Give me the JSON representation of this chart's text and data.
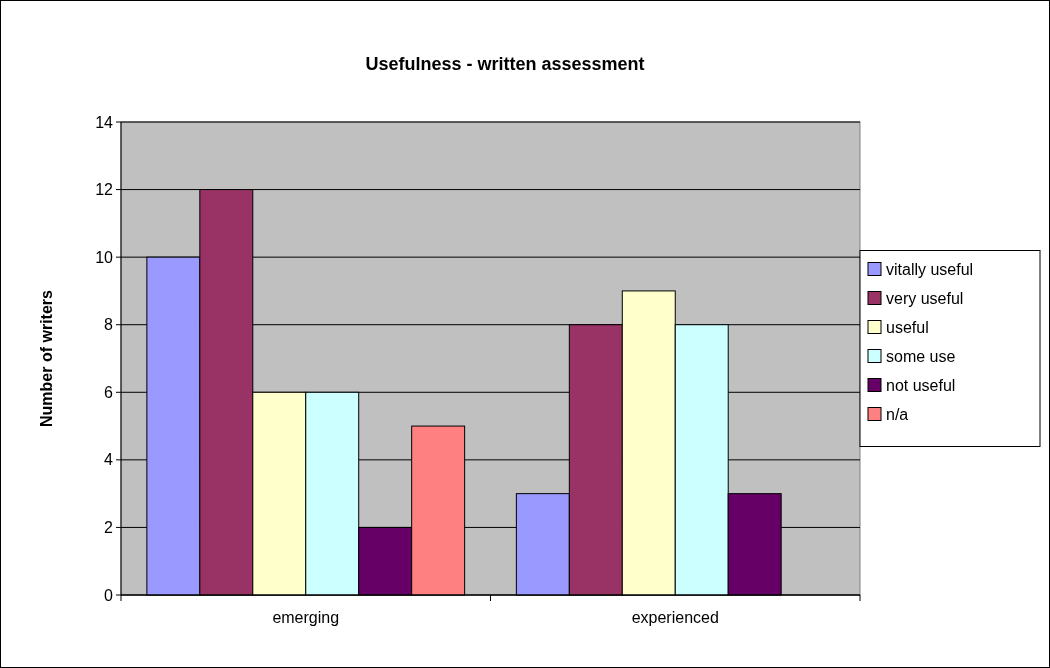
{
  "chart_data": {
    "type": "bar",
    "title": "Usefulness - written assessment",
    "ylabel": "Number of writers",
    "categories": [
      "emerging",
      "experienced"
    ],
    "series": [
      {
        "name": "vitally useful",
        "color": "#9999ff",
        "values": [
          10,
          3
        ]
      },
      {
        "name": "very useful",
        "color": "#993366",
        "values": [
          12,
          8
        ]
      },
      {
        "name": "useful",
        "color": "#ffffcc",
        "values": [
          6,
          9
        ]
      },
      {
        "name": "some use",
        "color": "#ccffff",
        "values": [
          6,
          8
        ]
      },
      {
        "name": "not useful",
        "color": "#660066",
        "values": [
          2,
          3
        ]
      },
      {
        "name": "n/a",
        "color": "#ff8080",
        "values": [
          5,
          null
        ]
      }
    ],
    "ylim": [
      0,
      14
    ],
    "yticks": [
      0,
      2,
      4,
      6,
      8,
      10,
      12,
      14
    ],
    "grid": "y",
    "legend": "right"
  }
}
